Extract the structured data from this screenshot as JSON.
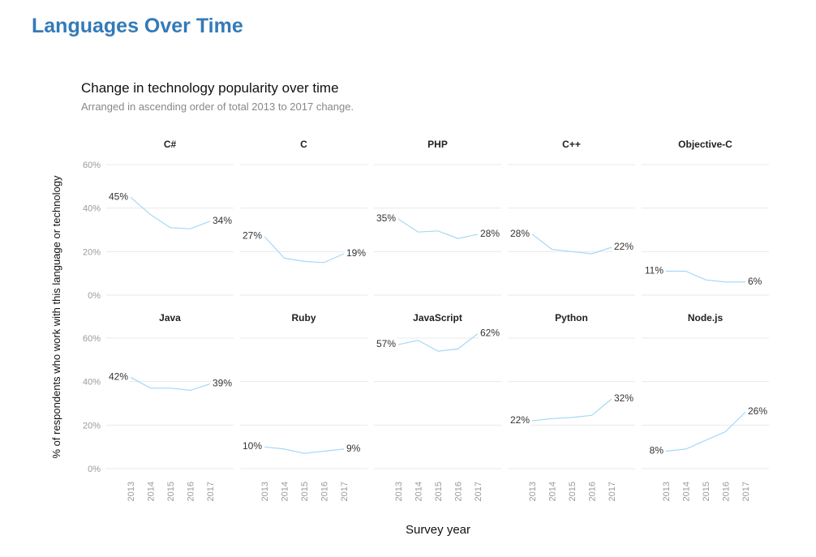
{
  "page_title": "Languages Over Time",
  "colors": {
    "title": "#337ab7",
    "line": "#a6d8f6",
    "grid": "#e9e9e9",
    "tick": "#9a9a9a",
    "text": "#333333"
  },
  "chart_data": {
    "type": "line",
    "title": "Change in technology popularity over time",
    "subtitle": "Arranged in ascending order of total 2013 to 2017 change.",
    "xlabel": "Survey year",
    "ylabel": "% of respondents who work with this language or technology",
    "x": [
      "2013",
      "2014",
      "2015",
      "2016",
      "2017"
    ],
    "ylim": [
      0,
      60
    ],
    "yticks": [
      "0%",
      "20%",
      "40%",
      "60%"
    ],
    "grid": true,
    "layout": "faceted 2 rows x 5 columns",
    "panels": [
      {
        "name": "C#",
        "values": [
          45,
          37,
          31,
          30.5,
          34
        ],
        "start_label": "45%",
        "end_label": "34%"
      },
      {
        "name": "C",
        "values": [
          27,
          17,
          15.5,
          15,
          19
        ],
        "start_label": "27%",
        "end_label": "19%"
      },
      {
        "name": "PHP",
        "values": [
          35,
          29,
          29.5,
          26,
          28
        ],
        "start_label": "35%",
        "end_label": "28%"
      },
      {
        "name": "C++",
        "values": [
          28,
          21,
          20,
          19,
          22
        ],
        "start_label": "28%",
        "end_label": "22%"
      },
      {
        "name": "Objective-C",
        "values": [
          11,
          11,
          7,
          6,
          6
        ],
        "start_label": "11%",
        "end_label": "6%"
      },
      {
        "name": "Java",
        "values": [
          42,
          37,
          37,
          36,
          39
        ],
        "start_label": "42%",
        "end_label": "39%"
      },
      {
        "name": "Ruby",
        "values": [
          10,
          9,
          7,
          8,
          9
        ],
        "start_label": "10%",
        "end_label": "9%"
      },
      {
        "name": "JavaScript",
        "values": [
          57,
          59,
          54,
          55,
          62
        ],
        "start_label": "57%",
        "end_label": "62%"
      },
      {
        "name": "Python",
        "values": [
          22,
          23,
          23.5,
          24.5,
          32
        ],
        "start_label": "22%",
        "end_label": "32%"
      },
      {
        "name": "Node.js",
        "values": [
          8,
          9,
          13,
          17,
          26
        ],
        "start_label": "8%",
        "end_label": "26%"
      }
    ]
  }
}
